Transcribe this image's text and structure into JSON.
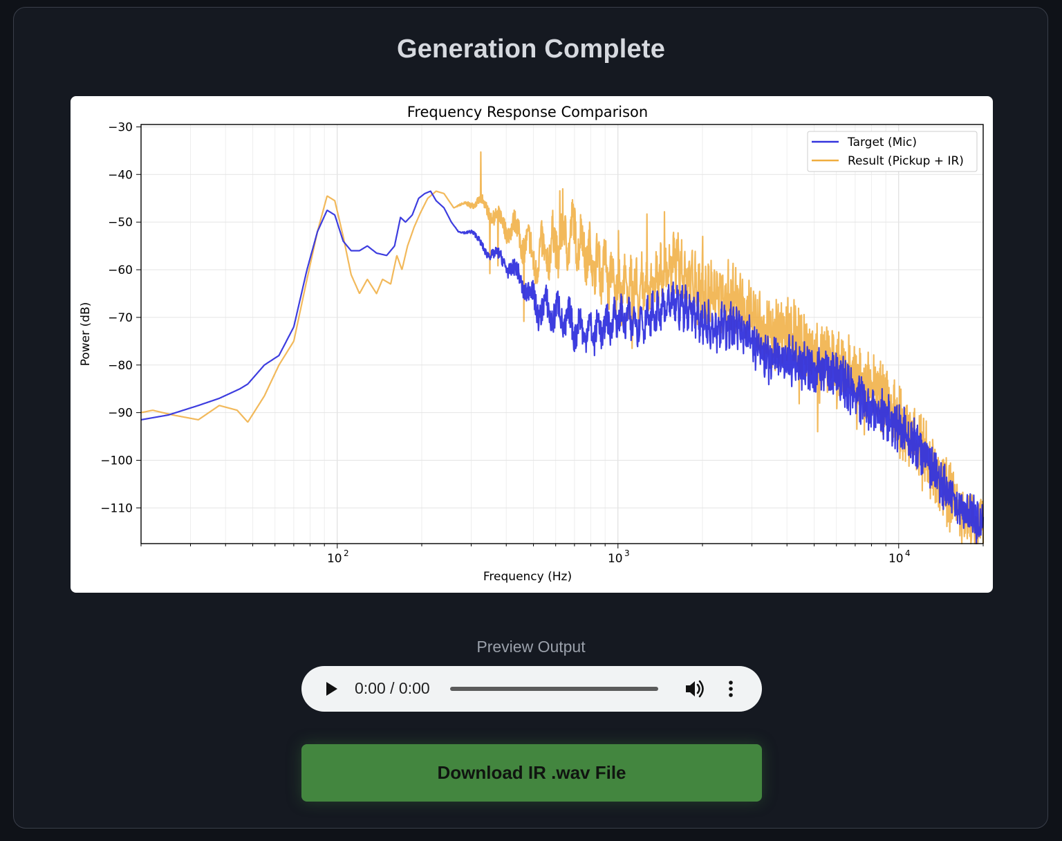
{
  "page": {
    "title": "Generation Complete"
  },
  "chart_data": {
    "type": "line",
    "title": "Frequency Response Comparison",
    "xlabel": "Frequency (Hz)",
    "ylabel": "Power (dB)",
    "xscale": "log",
    "xlim": [
      20,
      20000
    ],
    "ylim": [
      -117.5,
      -29.5
    ],
    "grid": true,
    "legend_position": "top-right",
    "yticks": [
      -30,
      -40,
      -50,
      -60,
      -70,
      -80,
      -90,
      -100,
      -110
    ],
    "ytick_labels": [
      "−30",
      "−40",
      "−50",
      "−60",
      "−70",
      "−80",
      "−90",
      "−100",
      "−110"
    ],
    "xticks": [
      {
        "base": "10",
        "exp": "2",
        "value": 100
      },
      {
        "base": "10",
        "exp": "3",
        "value": 1000
      },
      {
        "base": "10",
        "exp": "4",
        "value": 10000
      }
    ],
    "series": [
      {
        "name": "Target (Mic)",
        "color": "#3333dd",
        "x": [
          20,
          25,
          32,
          38,
          45,
          48,
          55,
          62,
          70,
          78,
          85,
          92,
          98,
          105,
          112,
          120,
          128,
          138,
          150,
          160,
          168,
          175,
          185,
          195,
          205,
          215,
          225,
          240,
          255,
          270,
          300,
          340,
          390,
          450,
          520,
          600,
          700,
          800,
          900,
          1000,
          1200,
          1400,
          1600,
          1800,
          2000,
          2300,
          2600,
          3000,
          3500,
          4000,
          5000,
          6000,
          7000,
          8000,
          9000,
          10000,
          12000,
          14000,
          16000,
          18000,
          20000
        ],
        "values": [
          -91.5,
          -90.5,
          -88.5,
          -87,
          -85,
          -84,
          -80,
          -78,
          -72,
          -60,
          -52,
          -47.5,
          -48.5,
          -54,
          -56,
          -56,
          -55,
          -56.5,
          -57,
          -55,
          -49,
          -50,
          -48.5,
          -45,
          -44,
          -43.5,
          -45.5,
          -47,
          -50,
          -52,
          -52,
          -56,
          -58,
          -62,
          -68,
          -69,
          -72,
          -73,
          -72,
          -70,
          -71,
          -69,
          -67,
          -68,
          -71,
          -72,
          -72,
          -75,
          -79,
          -79,
          -81,
          -82,
          -86,
          -89,
          -91,
          -93,
          -98,
          -104,
          -109,
          -112,
          -114
        ]
      },
      {
        "name": "Result (Pickup + IR)",
        "color": "#f0ad3e",
        "x": [
          20,
          22,
          26,
          32,
          38,
          44,
          48,
          55,
          62,
          70,
          78,
          85,
          92,
          98,
          105,
          112,
          120,
          128,
          138,
          145,
          155,
          163,
          170,
          178,
          188,
          198,
          210,
          225,
          240,
          260,
          290,
          330,
          380,
          440,
          510,
          600,
          700,
          800,
          900,
          1000,
          1200,
          1400,
          1600,
          1800,
          2000,
          2300,
          2600,
          3000,
          3500,
          4000,
          5000,
          6000,
          7000,
          8000,
          9000,
          10000,
          12000,
          14000,
          16000,
          18000,
          20000
        ],
        "values": [
          -90,
          -89.5,
          -90.5,
          -91.5,
          -88.5,
          -89.5,
          -92,
          -86.5,
          -80,
          -75,
          -62,
          -52,
          -44.5,
          -45.5,
          -53,
          -61,
          -65,
          -62,
          -65,
          -62,
          -63,
          -57,
          -60,
          -55,
          -51,
          -48,
          -45,
          -43.5,
          -44,
          -47,
          -46,
          -46,
          -50,
          -52,
          -58,
          -55,
          -52,
          -58,
          -60,
          -64,
          -64,
          -62,
          -58,
          -62,
          -65,
          -66,
          -66,
          -70,
          -74,
          -73,
          -77,
          -80,
          -82,
          -85,
          -88,
          -92,
          -98,
          -104,
          -110,
          -112,
          -114
        ]
      }
    ]
  },
  "audio": {
    "label": "Preview Output",
    "time": "0:00 / 0:00"
  },
  "download": {
    "label": "Download IR .wav File"
  }
}
